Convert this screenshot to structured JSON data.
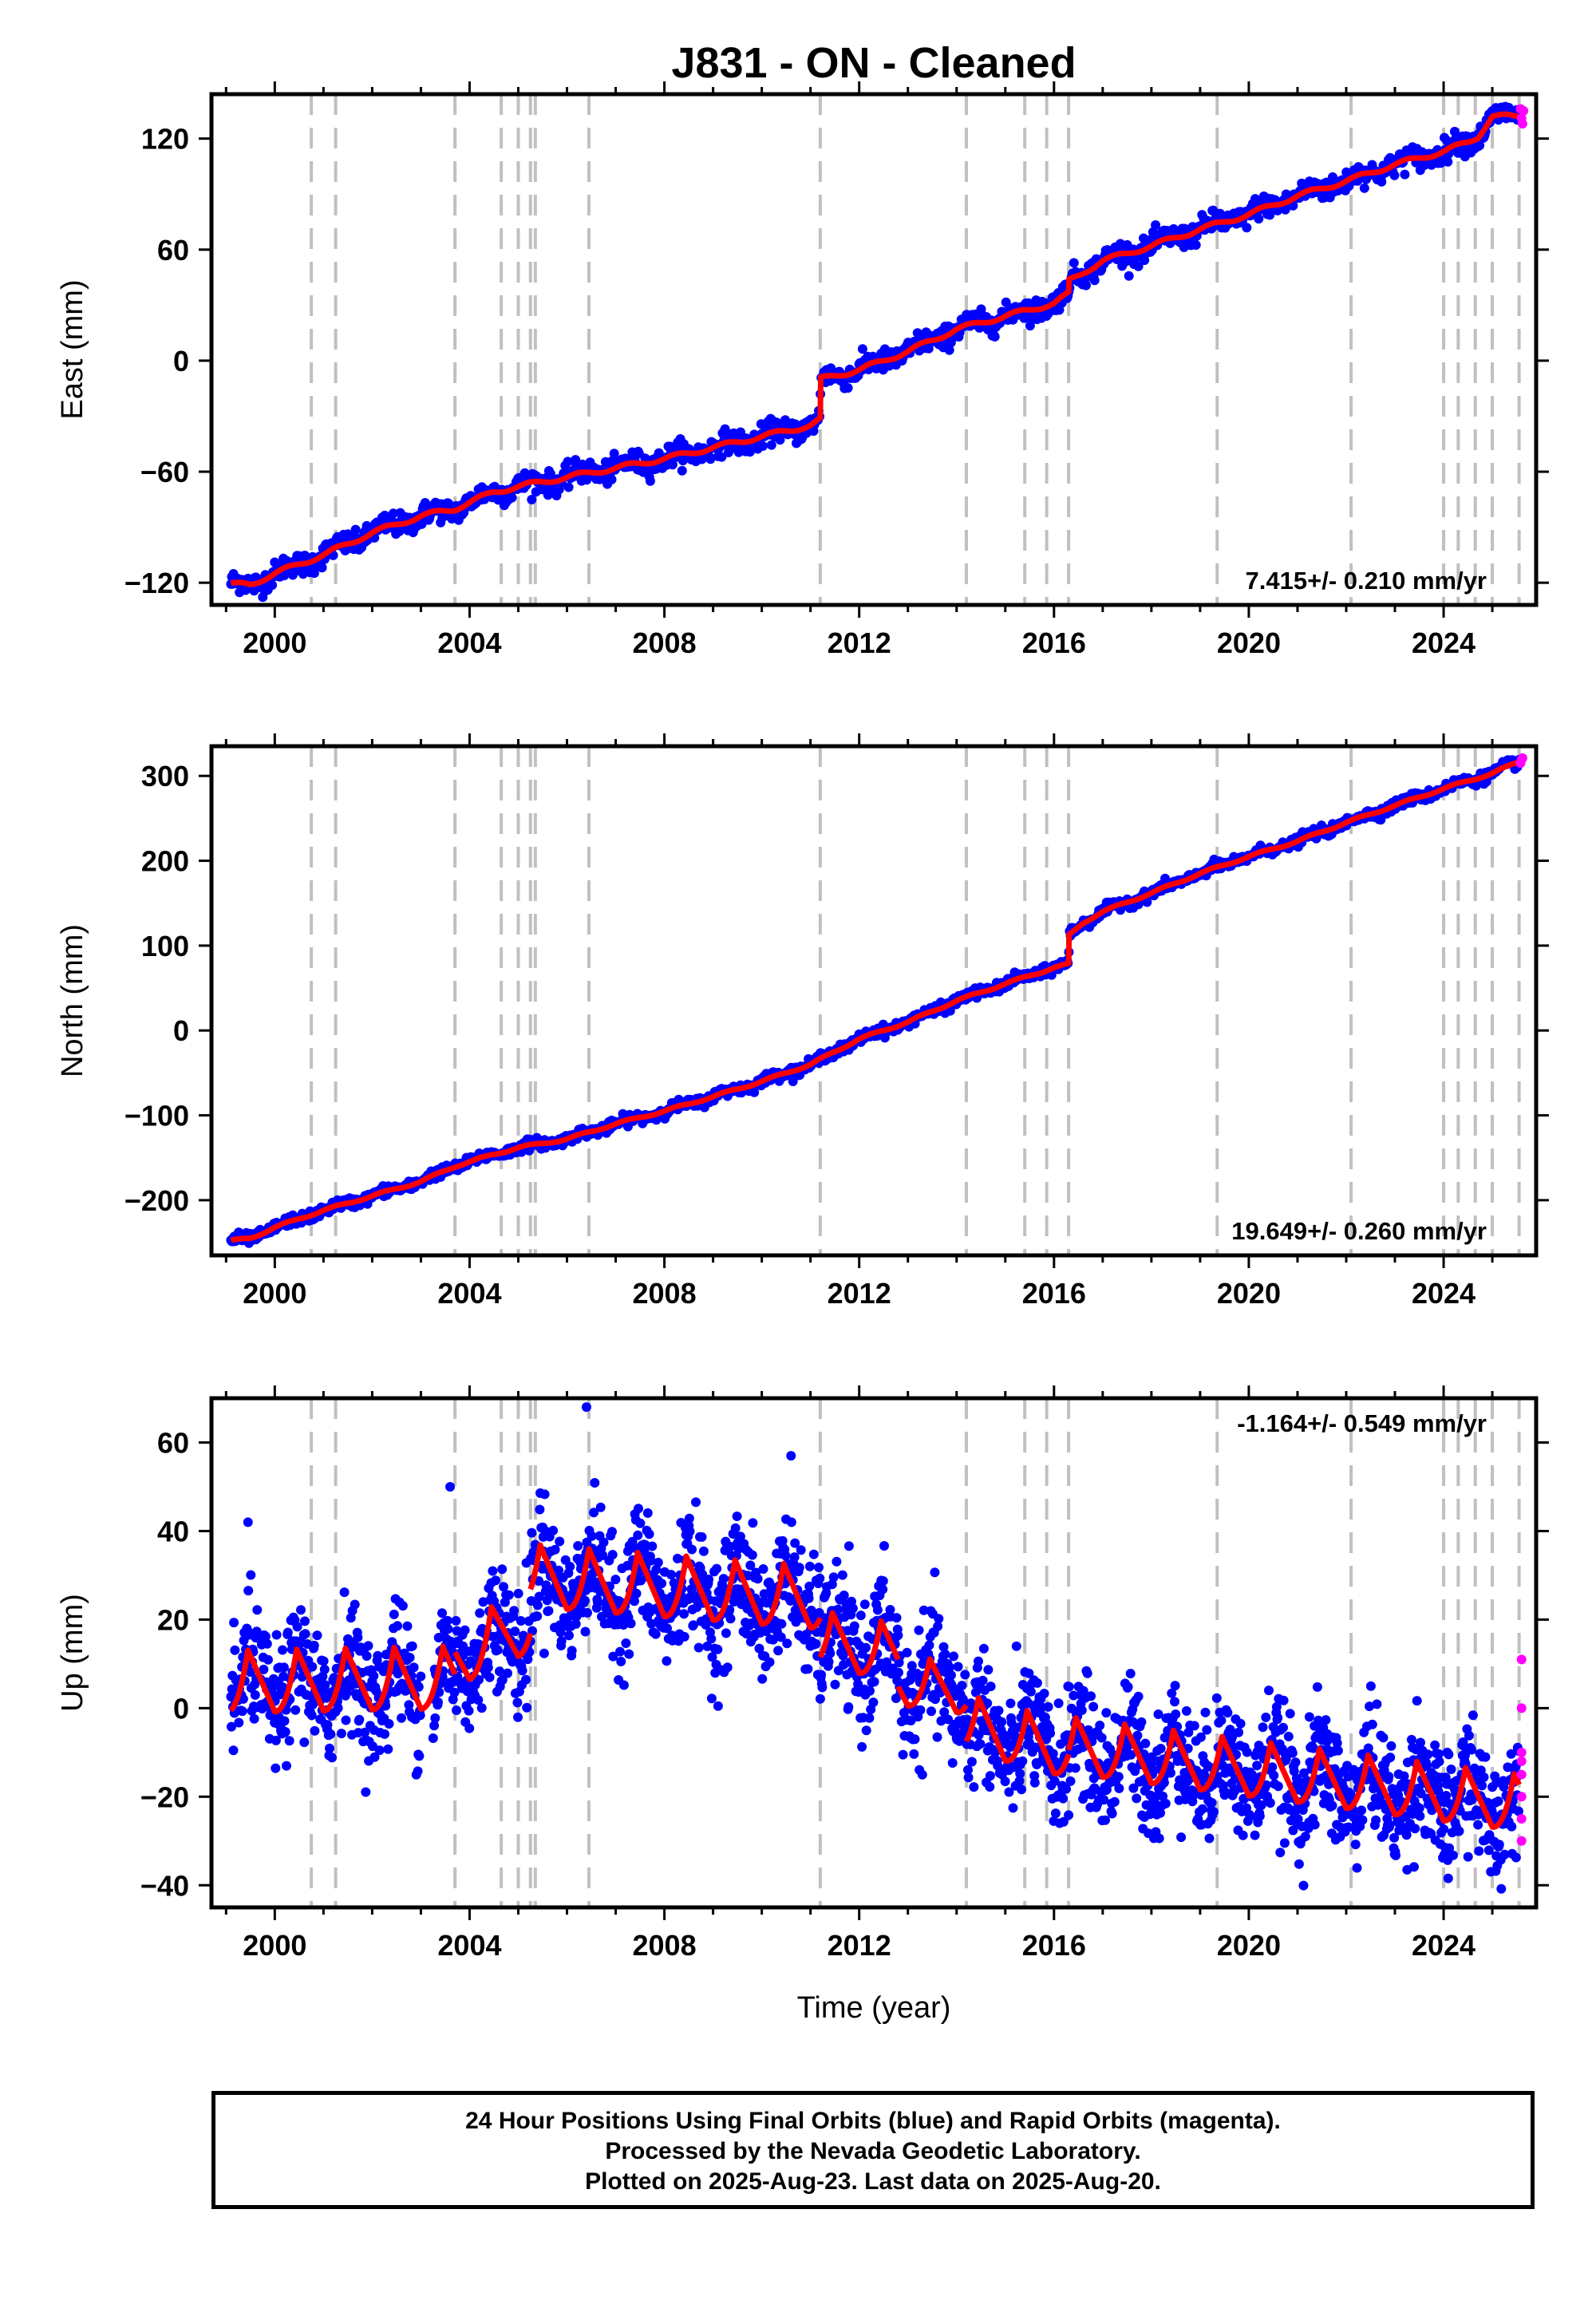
{
  "title": "J831  - ON - Cleaned",
  "x_label": "Time (year)",
  "footer": {
    "line1": "24 Hour Positions Using Final Orbits (blue) and Rapid Orbits (magenta).",
    "line2": "Processed by the Nevada Geodetic Laboratory.",
    "line3": "Plotted on 2025-Aug-23. Last data on 2025-Aug-20."
  },
  "colors": {
    "final_orbits": "#0000ff",
    "rapid_orbits": "#ff00ff",
    "model": "#ff0000",
    "event_lines": "#c0c0c0"
  },
  "chart_data": [
    {
      "type": "scatter",
      "name_panel": "east",
      "ylabel": "East (mm)",
      "xlim": [
        1998.7,
        2025.9
      ],
      "ylim": [
        -132,
        144
      ],
      "x_ticks": [
        2000,
        2004,
        2008,
        2012,
        2016,
        2020,
        2024
      ],
      "y_ticks": [
        -120,
        -60,
        0,
        60,
        120
      ],
      "rate_label": "7.415+/- 0.210 mm/yr",
      "rate_position": "bottom-right",
      "grid": false,
      "event_lines": [
        2000.75,
        2001.25,
        2003.7,
        2004.65,
        2005.0,
        2005.25,
        2005.35,
        2006.45,
        2011.2,
        2014.2,
        2015.4,
        2015.85,
        2016.3,
        2019.35,
        2022.1,
        2024.0,
        2024.3,
        2024.65,
        2025.0,
        2025.55
      ],
      "trend": {
        "x": [
          1999.1,
          1999.5,
          2000.0,
          2001.0,
          2002.0,
          2003.0,
          2003.7,
          2004.5,
          2005.0,
          2006.0,
          2007.0,
          2008.0,
          2009.0,
          2010.0,
          2011.0,
          2011.2,
          2011.21,
          2012.0,
          2013.0,
          2014.0,
          2015.0,
          2016.0,
          2016.3,
          2016.31,
          2017.0,
          2018.0,
          2019.0,
          2020.0,
          2021.0,
          2022.0,
          2023.0,
          2024.0,
          2024.5,
          2024.7,
          2025.0,
          2025.6
        ],
        "y": [
          -121,
          -121,
          -115,
          -105,
          -93,
          -84,
          -80,
          -71,
          -68,
          -63,
          -58,
          -53,
          -47,
          -41,
          -35,
          -32,
          -10,
          -5,
          5,
          17,
          24,
          31,
          36,
          43,
          54,
          62,
          71,
          79,
          89,
          97,
          106,
          113,
          118,
          121,
          132,
          132
        ]
      },
      "final_orbits_summary": {
        "x_range": [
          1999.1,
          2025.55
        ],
        "scatter_mm": 3
      },
      "rapid_orbits": {
        "x": [
          2025.58,
          2025.6,
          2025.62,
          2025.64
        ],
        "y": [
          136,
          131,
          128,
          135
        ]
      }
    },
    {
      "type": "scatter",
      "name_panel": "north",
      "ylabel": "North (mm)",
      "xlim": [
        1998.7,
        2025.9
      ],
      "ylim": [
        -265,
        335
      ],
      "x_ticks": [
        2000,
        2004,
        2008,
        2012,
        2016,
        2020,
        2024
      ],
      "y_ticks": [
        -200,
        -100,
        0,
        100,
        200,
        300
      ],
      "rate_label": "19.649+/- 0.260 mm/yr",
      "rate_position": "bottom-right",
      "grid": false,
      "event_lines": [
        2000.75,
        2001.25,
        2003.7,
        2004.65,
        2005.0,
        2005.25,
        2005.35,
        2006.45,
        2011.2,
        2014.2,
        2015.4,
        2015.85,
        2016.3,
        2019.35,
        2022.1,
        2024.0,
        2024.3,
        2024.65,
        2025.0,
        2025.55
      ],
      "trend": {
        "x": [
          1999.1,
          1999.5,
          2000.0,
          2001.0,
          2002.0,
          2003.0,
          2003.7,
          2004.5,
          2005.0,
          2006.0,
          2007.0,
          2008.0,
          2009.0,
          2010.0,
          2011.0,
          2012.0,
          2013.0,
          2014.0,
          2015.0,
          2016.0,
          2016.3,
          2016.31,
          2016.6,
          2017.0,
          2018.0,
          2019.0,
          2020.0,
          2021.0,
          2022.0,
          2023.0,
          2024.0,
          2025.0,
          2025.6
        ],
        "y": [
          -248,
          -245,
          -232,
          -212,
          -195,
          -178,
          -160,
          -146,
          -138,
          -128,
          -110,
          -95,
          -78,
          -60,
          -40,
          -10,
          10,
          35,
          55,
          74,
          78,
          112,
          127,
          140,
          162,
          185,
          205,
          223,
          245,
          265,
          285,
          303,
          318
        ]
      },
      "final_orbits_summary": {
        "x_range": [
          1999.1,
          2025.55
        ],
        "scatter_mm": 3
      },
      "rapid_orbits": {
        "x": [
          2025.58,
          2025.6,
          2025.62
        ],
        "y": [
          315,
          319,
          321
        ]
      }
    },
    {
      "type": "scatter",
      "name_panel": "up",
      "ylabel": "Up (mm)",
      "xlim": [
        1998.7,
        2025.9
      ],
      "ylim": [
        -45,
        70
      ],
      "x_ticks": [
        2000,
        2004,
        2008,
        2012,
        2016,
        2020,
        2024
      ],
      "y_ticks": [
        -40,
        -20,
        0,
        20,
        40,
        60
      ],
      "rate_label": "-1.164+/- 0.549 mm/yr",
      "rate_position": "top-right",
      "grid": false,
      "event_lines": [
        2000.75,
        2001.25,
        2003.7,
        2004.65,
        2005.0,
        2005.25,
        2005.35,
        2006.45,
        2011.2,
        2014.2,
        2015.4,
        2015.85,
        2016.3,
        2019.35,
        2022.1,
        2024.0,
        2024.3,
        2024.65,
        2025.0,
        2025.55
      ],
      "trend": {
        "segments": [
          {
            "x_start": 1999.1,
            "x_end": 2003.7,
            "base": [
              3,
              4
            ],
            "amplitude": 10
          },
          {
            "x_start": 2003.7,
            "x_end": 2005.25,
            "base": [
              9,
              17
            ],
            "amplitude": 10
          },
          {
            "x_start": 2005.25,
            "x_end": 2011.2,
            "base": [
              27,
              22
            ],
            "amplitude": 10
          },
          {
            "x_start": 2011.2,
            "x_end": 2012.8,
            "base": [
              13,
              10
            ],
            "amplitude": 9
          },
          {
            "x_start": 2012.8,
            "x_end": 2014.2,
            "base": [
              4,
              2
            ],
            "amplitude": 8
          },
          {
            "x_start": 2014.2,
            "x_end": 2016.3,
            "base": [
              -6,
              -12
            ],
            "amplitude": 9
          },
          {
            "x_start": 2016.3,
            "x_end": 2025.55,
            "base": [
              -11,
              -24
            ],
            "amplitude": 9
          }
        ]
      },
      "final_orbits_summary": {
        "x_range": [
          1999.1,
          2025.55
        ],
        "scatter_mm": 6
      },
      "outliers": {
        "x": [
          1999.45,
          2006.4,
          2010.6,
          2003.6
        ],
        "y": [
          42,
          68,
          57,
          50
        ]
      },
      "rapid_orbits": {
        "x": [
          2025.6,
          2025.6,
          2025.6,
          2025.6,
          2025.6,
          2025.6,
          2025.6,
          2025.6
        ],
        "y": [
          11,
          0,
          -10,
          -12,
          -15,
          -20,
          -25,
          -30
        ]
      }
    }
  ]
}
